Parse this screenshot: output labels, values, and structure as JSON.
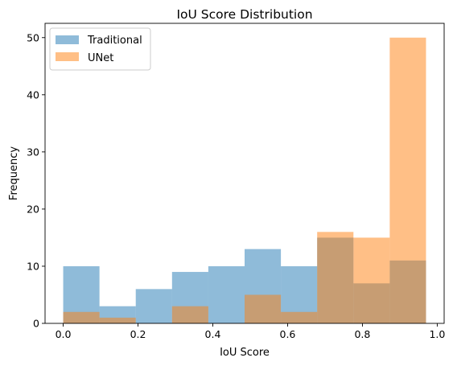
{
  "chart_data": {
    "type": "histogram",
    "title": "IoU Score Distribution",
    "xlabel": "IoU Score",
    "ylabel": "Frequency",
    "xlim": [
      -0.0485,
      1.0185
    ],
    "ylim": [
      0,
      52.5
    ],
    "xticks": [
      0.0,
      0.2,
      0.4,
      0.6,
      0.8,
      1.0
    ],
    "xtick_labels": [
      "0.0",
      "0.2",
      "0.4",
      "0.6",
      "0.8",
      "1.0"
    ],
    "yticks": [
      0,
      10,
      20,
      30,
      40,
      50
    ],
    "ytick_labels": [
      "0",
      "10",
      "20",
      "30",
      "40",
      "50"
    ],
    "legend_position": "upper-left",
    "overlay_alpha": 0.5,
    "grid": false,
    "series": [
      {
        "name": "Traditional",
        "color": "#1f77b4",
        "bin_edges": [
          0.0,
          0.097,
          0.194,
          0.291,
          0.388,
          0.485,
          0.582,
          0.679,
          0.776,
          0.873,
          0.97
        ],
        "counts": [
          10,
          3,
          6,
          9,
          10,
          13,
          10,
          15,
          7,
          11
        ]
      },
      {
        "name": "UNet",
        "color": "#ff7f0e",
        "bin_edges": [
          0.0,
          0.097,
          0.194,
          0.291,
          0.388,
          0.485,
          0.582,
          0.679,
          0.776,
          0.873,
          0.97
        ],
        "counts": [
          2,
          1,
          0,
          3,
          0,
          5,
          2,
          16,
          15,
          50
        ]
      }
    ]
  }
}
